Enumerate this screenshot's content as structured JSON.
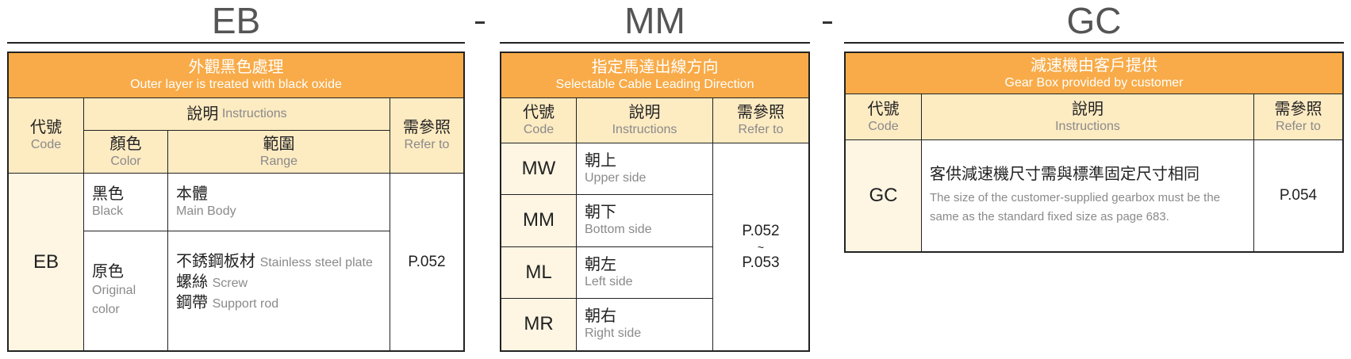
{
  "sections": [
    {
      "code": "EB",
      "title_zh": "外觀黑色處理",
      "title_en": "Outer layer is treated with black oxide",
      "headers": {
        "code_zh": "代號",
        "code_en": "Code",
        "instr_zh": "說明",
        "instr_en": "Instructions",
        "color_zh": "顏色",
        "color_en": "Color",
        "range_zh": "範圍",
        "range_en": "Range",
        "ref_zh": "需參照",
        "ref_en": "Refer to"
      },
      "row_code": "EB",
      "ref": "P.052",
      "rows": [
        {
          "color_zh": "黑色",
          "color_en": "Black",
          "range": [
            {
              "zh": "本體",
              "en": "Main Body"
            }
          ]
        },
        {
          "color_zh": "原色",
          "color_en": "Original color",
          "range": [
            {
              "zh": "不銹鋼板材",
              "en": "Stainless steel plate"
            },
            {
              "zh": "螺絲",
              "en": "Screw"
            },
            {
              "zh": "鋼帶",
              "en": "Support rod"
            }
          ]
        }
      ]
    },
    {
      "code": "MM",
      "title_zh": "指定馬達出線方向",
      "title_en": "Selectable Cable Leading Direction",
      "headers": {
        "code_zh": "代號",
        "code_en": "Code",
        "instr_zh": "說明",
        "instr_en": "Instructions",
        "ref_zh": "需參照",
        "ref_en": "Refer to"
      },
      "ref_from": "P.052",
      "ref_sep": "~",
      "ref_to": "P.053",
      "rows": [
        {
          "code": "MW",
          "zh": "朝上",
          "en": "Upper side"
        },
        {
          "code": "MM",
          "zh": "朝下",
          "en": "Bottom side"
        },
        {
          "code": "ML",
          "zh": "朝左",
          "en": "Left side"
        },
        {
          "code": "MR",
          "zh": "朝右",
          "en": "Right side"
        }
      ]
    },
    {
      "code": "GC",
      "title_zh": "減速機由客戶提供",
      "title_en": "Gear Box provided by customer",
      "headers": {
        "code_zh": "代號",
        "code_en": "Code",
        "instr_zh": "說明",
        "instr_en": "Instructions",
        "ref_zh": "需參照",
        "ref_en": "Refer to"
      },
      "row_code": "GC",
      "desc_zh": "客供減速機尺寸需與標準固定尺寸相同",
      "desc_en": "The size of the customer-supplied gearbox must be the same as the standard fixed size as page 683.",
      "ref": "P.054"
    }
  ],
  "separator": "-",
  "colors": {
    "orange": "#F8AB48",
    "header": "#FDEBC2",
    "code_column": "#FEF6E3"
  }
}
